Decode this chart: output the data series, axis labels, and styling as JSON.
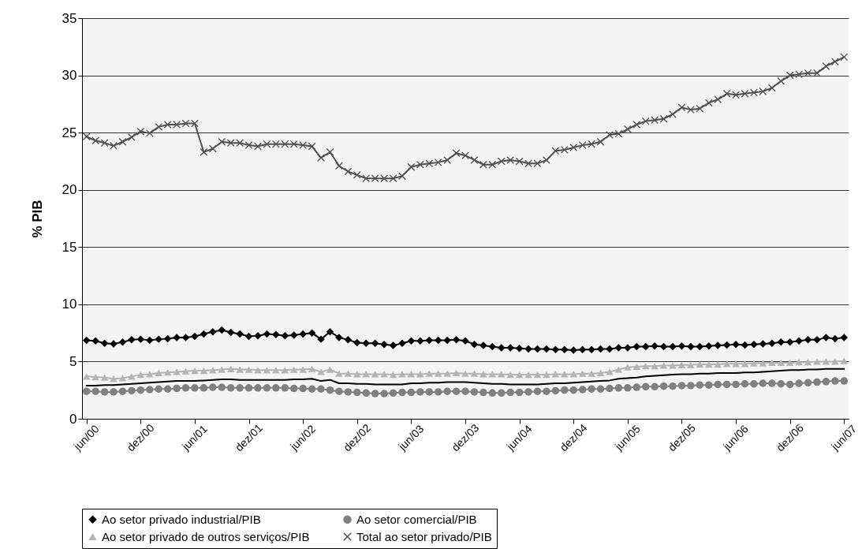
{
  "chart_data": {
    "type": "line",
    "ylabel": "% PIB",
    "ylim": [
      0,
      35
    ],
    "yticks": [
      0,
      5,
      10,
      15,
      20,
      25,
      30,
      35
    ],
    "grid": "y",
    "legend": "bottom",
    "categories": [
      "jun/00",
      null,
      null,
      null,
      null,
      null,
      "dez/00",
      null,
      null,
      null,
      null,
      null,
      "jun/01",
      null,
      null,
      null,
      null,
      null,
      "dez/01",
      null,
      null,
      null,
      null,
      null,
      "jun/02",
      null,
      null,
      null,
      null,
      null,
      "dez/02",
      null,
      null,
      null,
      null,
      null,
      "jun/03",
      null,
      null,
      null,
      null,
      null,
      "dez/03",
      null,
      null,
      null,
      null,
      null,
      "jun/04",
      null,
      null,
      null,
      null,
      null,
      "dez/04",
      null,
      null,
      null,
      null,
      null,
      "jun/05",
      null,
      null,
      null,
      null,
      null,
      "dez/05",
      null,
      null,
      null,
      null,
      null,
      "jun/06",
      null,
      null,
      null,
      null,
      null,
      "dez/06",
      null,
      null,
      null,
      null,
      null,
      "jun/07"
    ],
    "series": [
      {
        "name": "Ao setor privado industrial/PIB",
        "color": "#000000",
        "marker": "diamond",
        "values": [
          6.85,
          6.8,
          6.6,
          6.55,
          6.7,
          6.9,
          6.95,
          6.85,
          6.95,
          7.0,
          7.1,
          7.1,
          7.2,
          7.4,
          7.6,
          7.75,
          7.55,
          7.4,
          7.2,
          7.25,
          7.4,
          7.35,
          7.25,
          7.3,
          7.4,
          7.5,
          6.95,
          7.6,
          7.1,
          6.9,
          6.65,
          6.6,
          6.6,
          6.5,
          6.4,
          6.6,
          6.8,
          6.8,
          6.85,
          6.85,
          6.85,
          6.9,
          6.8,
          6.5,
          6.4,
          6.3,
          6.2,
          6.2,
          6.15,
          6.1,
          6.1,
          6.1,
          6.05,
          6.05,
          6.0,
          6.05,
          6.05,
          6.1,
          6.1,
          6.2,
          6.2,
          6.3,
          6.3,
          6.35,
          6.3,
          6.3,
          6.35,
          6.3,
          6.3,
          6.35,
          6.4,
          6.45,
          6.5,
          6.45,
          6.5,
          6.55,
          6.6,
          6.7,
          6.7,
          6.8,
          6.9,
          6.9,
          7.1,
          7.0,
          7.1
        ]
      },
      {
        "name": "Ao setor comercial/PIB",
        "color": "#808080",
        "marker": "circle",
        "values": [
          2.4,
          2.4,
          2.35,
          2.35,
          2.4,
          2.45,
          2.5,
          2.55,
          2.6,
          2.6,
          2.65,
          2.7,
          2.7,
          2.7,
          2.75,
          2.75,
          2.7,
          2.7,
          2.7,
          2.7,
          2.7,
          2.7,
          2.7,
          2.65,
          2.65,
          2.6,
          2.6,
          2.5,
          2.4,
          2.35,
          2.3,
          2.25,
          2.2,
          2.2,
          2.25,
          2.3,
          2.3,
          2.35,
          2.35,
          2.35,
          2.4,
          2.4,
          2.4,
          2.35,
          2.3,
          2.25,
          2.25,
          2.3,
          2.3,
          2.35,
          2.4,
          2.4,
          2.45,
          2.5,
          2.5,
          2.55,
          2.6,
          2.6,
          2.65,
          2.7,
          2.7,
          2.75,
          2.8,
          2.8,
          2.85,
          2.85,
          2.9,
          2.9,
          2.95,
          2.95,
          3.0,
          3.0,
          3.0,
          3.05,
          3.05,
          3.1,
          3.1,
          3.05,
          3.0,
          3.1,
          3.15,
          3.2,
          3.25,
          3.3,
          3.3
        ]
      },
      {
        "name": "Ao setor privado de outros serviços/PIB",
        "color": "#b4b4b4",
        "marker": "triangle",
        "values": [
          3.7,
          3.65,
          3.6,
          3.5,
          3.55,
          3.7,
          3.85,
          3.9,
          4.0,
          4.05,
          4.1,
          4.15,
          4.2,
          4.2,
          4.25,
          4.3,
          4.35,
          4.3,
          4.3,
          4.25,
          4.25,
          4.25,
          4.25,
          4.3,
          4.3,
          4.35,
          4.1,
          4.3,
          3.95,
          3.95,
          3.9,
          3.9,
          3.9,
          3.9,
          3.85,
          3.9,
          3.9,
          3.9,
          3.95,
          3.95,
          3.95,
          4.0,
          3.95,
          3.95,
          3.9,
          3.9,
          3.9,
          3.85,
          3.85,
          3.85,
          3.85,
          3.85,
          3.9,
          3.9,
          3.9,
          3.95,
          3.95,
          4.0,
          4.1,
          4.3,
          4.5,
          4.55,
          4.6,
          4.6,
          4.65,
          4.65,
          4.7,
          4.7,
          4.75,
          4.75,
          4.75,
          4.8,
          4.8,
          4.8,
          4.85,
          4.85,
          4.9,
          4.9,
          4.9,
          4.95,
          4.95,
          5.0,
          5.0,
          5.0,
          5.05
        ]
      },
      {
        "name": "Total ao setor privado/PIB",
        "color": "#505050",
        "marker": "cross",
        "values": [
          24.65,
          24.3,
          24.1,
          23.85,
          24.2,
          24.6,
          25.1,
          24.95,
          25.5,
          25.7,
          25.7,
          25.8,
          25.8,
          23.3,
          23.6,
          24.2,
          24.1,
          24.1,
          23.9,
          23.8,
          24.0,
          24.0,
          24.0,
          24.0,
          23.9,
          23.8,
          22.8,
          23.3,
          22.1,
          21.6,
          21.3,
          21.0,
          21.0,
          21.0,
          21.0,
          21.2,
          22.0,
          22.2,
          22.3,
          22.4,
          22.6,
          23.2,
          23.0,
          22.6,
          22.2,
          22.2,
          22.5,
          22.6,
          22.5,
          22.3,
          22.3,
          22.6,
          23.4,
          23.5,
          23.7,
          23.9,
          24.0,
          24.2,
          24.8,
          24.9,
          25.3,
          25.7,
          26.0,
          26.1,
          26.2,
          26.6,
          27.2,
          27.0,
          27.1,
          27.6,
          27.9,
          28.4,
          28.3,
          28.4,
          28.5,
          28.6,
          28.9,
          29.5,
          30.0,
          30.1,
          30.2,
          30.2,
          30.8,
          31.2,
          31.6
        ]
      },
      {
        "color": "#000000",
        "marker": "none",
        "values": [
          2.9,
          2.9,
          2.95,
          2.95,
          3.0,
          3.05,
          3.1,
          3.15,
          3.2,
          3.25,
          3.3,
          3.3,
          3.3,
          3.35,
          3.4,
          3.45,
          3.45,
          3.4,
          3.4,
          3.4,
          3.4,
          3.4,
          3.4,
          3.45,
          3.45,
          3.5,
          3.3,
          3.4,
          3.1,
          3.1,
          3.05,
          3.05,
          3.0,
          3.0,
          3.0,
          3.0,
          3.1,
          3.1,
          3.15,
          3.15,
          3.2,
          3.2,
          3.2,
          3.15,
          3.1,
          3.05,
          3.05,
          3.0,
          3.0,
          3.0,
          3.0,
          3.05,
          3.1,
          3.1,
          3.15,
          3.2,
          3.25,
          3.3,
          3.35,
          3.5,
          3.55,
          3.6,
          3.7,
          3.75,
          3.8,
          3.85,
          3.9,
          3.9,
          3.95,
          3.95,
          4.0,
          4.0,
          4.0,
          4.05,
          4.05,
          4.1,
          4.15,
          4.2,
          4.25,
          4.25,
          4.3,
          4.3,
          4.35,
          4.35,
          4.35
        ]
      }
    ]
  }
}
